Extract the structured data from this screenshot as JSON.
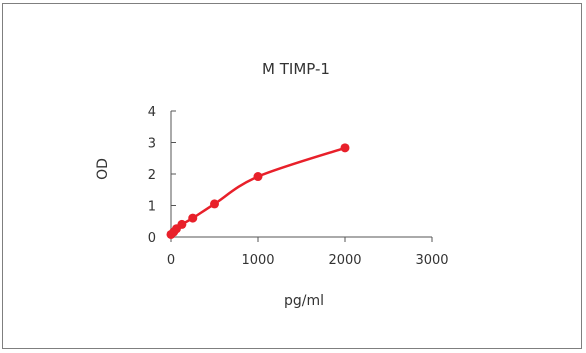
{
  "chart_data": {
    "type": "line",
    "title": "M   TIMP-1",
    "xlabel": "pg/ml",
    "ylabel": "OD",
    "xlim": [
      0,
      3000
    ],
    "ylim": [
      0,
      4
    ],
    "xticks": [
      0,
      1000,
      2000,
      3000
    ],
    "yticks": [
      0,
      1,
      2,
      3,
      4
    ],
    "grid": false,
    "series": [
      {
        "color": "#e8202a",
        "x": [
          0,
          31.25,
          62.5,
          125,
          250,
          500,
          1000,
          2000
        ],
        "y": [
          0.08,
          0.16,
          0.26,
          0.4,
          0.6,
          1.05,
          1.92,
          2.83
        ]
      }
    ]
  }
}
